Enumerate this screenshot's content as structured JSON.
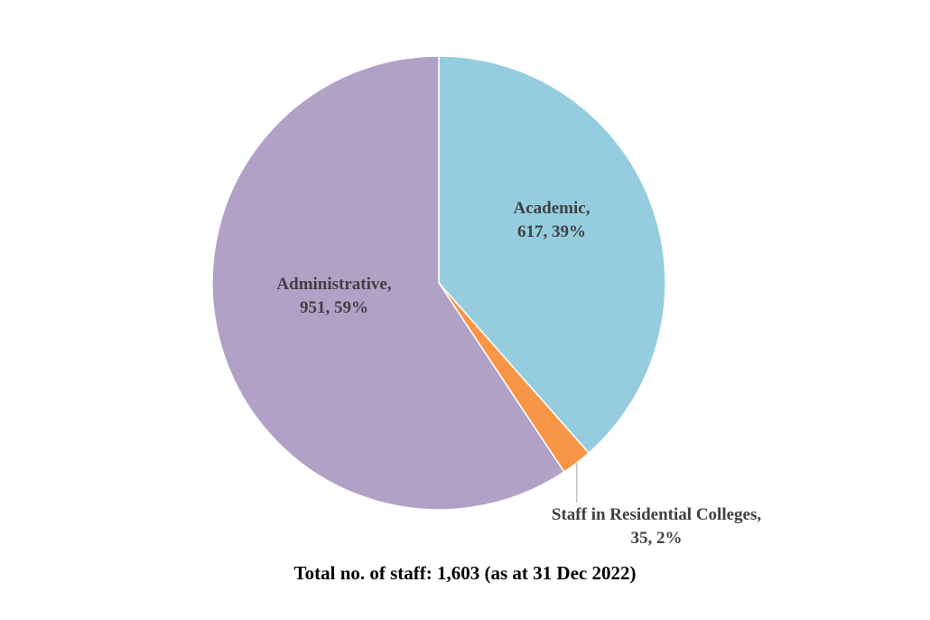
{
  "chart_data": {
    "type": "pie",
    "slices": [
      {
        "name": "Academic",
        "value": 617,
        "percent": "39%",
        "color": "#95cddf",
        "label_line1": "Academic,",
        "label_line2": "617, 39%"
      },
      {
        "name": "Staff in Residential Colleges",
        "value": 35,
        "percent": "2%",
        "color": "#f79646",
        "label_line1": "Staff in Residential Colleges,",
        "label_line2": "35, 2%"
      },
      {
        "name": "Administrative",
        "value": 951,
        "percent": "59%",
        "color": "#b2a1c7",
        "label_line1": "Administrative,",
        "label_line2": "951, 59%"
      }
    ],
    "start_angle": "12 o'clock",
    "direction": "clockwise",
    "legend": "none",
    "caption": "Total no. of staff: 1,603 (as at 31 Dec 2022)"
  }
}
